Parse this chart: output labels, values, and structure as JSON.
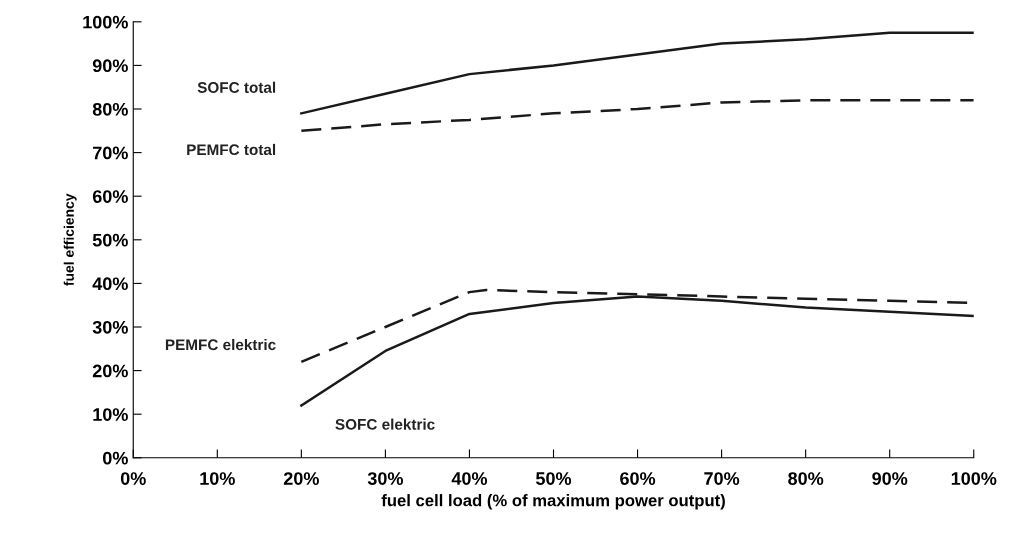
{
  "chart_data": {
    "type": "line",
    "xlabel": "fuel cell load (% of maximum power output)",
    "ylabel": "fuel efficiency",
    "xlim": [
      0,
      100
    ],
    "ylim": [
      0,
      100
    ],
    "xticks": [
      {
        "value": 0,
        "label": "0%"
      },
      {
        "value": 10,
        "label": "10%"
      },
      {
        "value": 20,
        "label": "20%"
      },
      {
        "value": 30,
        "label": "30%"
      },
      {
        "value": 40,
        "label": "40%"
      },
      {
        "value": 50,
        "label": "50%"
      },
      {
        "value": 60,
        "label": "60%"
      },
      {
        "value": 70,
        "label": "70%"
      },
      {
        "value": 80,
        "label": "80%"
      },
      {
        "value": 90,
        "label": "90%"
      },
      {
        "value": 100,
        "label": "100%"
      }
    ],
    "yticks": [
      {
        "value": 0,
        "label": "0%"
      },
      {
        "value": 10,
        "label": "10%"
      },
      {
        "value": 20,
        "label": "20%"
      },
      {
        "value": 30,
        "label": "30%"
      },
      {
        "value": 40,
        "label": "40%"
      },
      {
        "value": 50,
        "label": "50%"
      },
      {
        "value": 60,
        "label": "60%"
      },
      {
        "value": 70,
        "label": "70%"
      },
      {
        "value": 80,
        "label": "80%"
      },
      {
        "value": 90,
        "label": "90%"
      },
      {
        "value": 100,
        "label": "100%"
      }
    ],
    "grid": false,
    "legend": false,
    "marker": "none",
    "series": [
      {
        "name": "SOFC total",
        "color": "#1a1a1a",
        "line_style": "solid",
        "x": [
          20,
          30,
          40,
          50,
          60,
          70,
          80,
          90,
          100
        ],
        "values": [
          79,
          83.5,
          88,
          90,
          92.5,
          95,
          96,
          97.5,
          97.5
        ]
      },
      {
        "name": "PEMFC total",
        "color": "#1a1a1a",
        "line_style": "dashed",
        "x": [
          20,
          30,
          40,
          50,
          60,
          70,
          80,
          90,
          100
        ],
        "values": [
          75,
          76.5,
          77.5,
          79,
          80,
          81.5,
          82,
          82,
          82
        ]
      },
      {
        "name": "PEMFC elektric",
        "color": "#1a1a1a",
        "line_style": "dashed",
        "x": [
          20,
          30,
          40,
          42,
          50,
          60,
          70,
          80,
          90,
          100
        ],
        "values": [
          22,
          30,
          38,
          38.5,
          38,
          37.5,
          37,
          36.5,
          36,
          35.5
        ]
      },
      {
        "name": "SOFC elektric",
        "color": "#1a1a1a",
        "line_style": "solid",
        "x": [
          20,
          30,
          40,
          50,
          60,
          70,
          80,
          90,
          100
        ],
        "values": [
          12,
          24.5,
          33,
          35.5,
          37,
          36,
          34.5,
          33.5,
          32.5
        ]
      }
    ]
  }
}
